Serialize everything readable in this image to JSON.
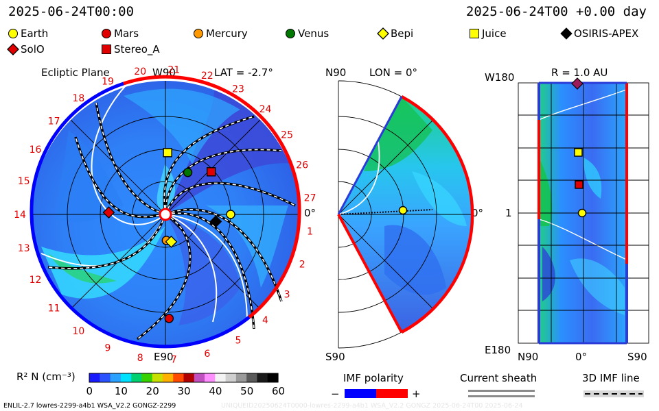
{
  "header": {
    "left_time": "2025-06-24T00:00",
    "right_time": "2025-06-24T00 +0.00 day"
  },
  "bodies": [
    {
      "name": "Earth",
      "symbol": "circle",
      "color": "#ffff00"
    },
    {
      "name": "Mars",
      "symbol": "circle",
      "color": "#e00000"
    },
    {
      "name": "Mercury",
      "symbol": "circle",
      "color": "#ff9900"
    },
    {
      "name": "Venus",
      "symbol": "circle",
      "color": "#007700"
    },
    {
      "name": "Bepi",
      "symbol": "diamond",
      "color": "#ffff00"
    },
    {
      "name": "Juice",
      "symbol": "square",
      "color": "#ffff00"
    },
    {
      "name": "OSIRIS-APEX",
      "symbol": "diamond",
      "color": "#000000"
    },
    {
      "name": "SolO",
      "symbol": "diamond",
      "color": "#e00000"
    },
    {
      "name": "Stereo_A",
      "symbol": "square",
      "color": "#e00000"
    }
  ],
  "panels": {
    "ecliptic": {
      "title": "Ecliptic Plane",
      "lat_label": "LAT = -2.7°",
      "top_label": "W90",
      "bottom_label": "E90",
      "right_label": "0°",
      "carrington_labels": [
        "1",
        "2",
        "3",
        "4",
        "5",
        "6",
        "7",
        "8",
        "9",
        "10",
        "11",
        "12",
        "13",
        "14",
        "15",
        "16",
        "17",
        "18",
        "19",
        "20",
        "21",
        "22",
        "23",
        "24",
        "25",
        "26",
        "27"
      ]
    },
    "meridional": {
      "top_label": "N90",
      "bottom_label": "S90",
      "lon_label": "LON = 0°",
      "right_label": "0°"
    },
    "sphere": {
      "title": "R = 1.0 AU",
      "top_left_label": "W180",
      "bottom_left_label": "E180",
      "mid_left_label": "1",
      "bottom_labels": [
        "N90",
        "0°",
        "S90"
      ]
    }
  },
  "colorbar": {
    "label": "R² N (cm⁻³)",
    "ticks": [
      "0",
      "10",
      "20",
      "30",
      "40",
      "50",
      "60"
    ],
    "colors": [
      "#1a1aff",
      "#2a52ff",
      "#2aa0ff",
      "#00e0ff",
      "#00d070",
      "#39d000",
      "#c8e000",
      "#ffb000",
      "#ff4a00",
      "#b00000",
      "#c050c0",
      "#ff8fff",
      "#f3f3f3",
      "#cfcfcf",
      "#9a9a9a",
      "#5a5a5a",
      "#1a1a1a",
      "#000000"
    ]
  },
  "imf_polarity": {
    "title": "IMF polarity",
    "minus": "−",
    "plus": "+",
    "neg_color": "#0000ff",
    "pos_color": "#ff0000"
  },
  "current_sheath": {
    "title": "Current sheath"
  },
  "imf_line": {
    "title": "3D IMF line"
  },
  "footer": {
    "left": "ENLIL-2.7 lowres-2299-a4b1 WSA_V2.2 GONGZ-2299",
    "right": "UNIQUEID20250624T0000-lowres-2299-a4b1 WSA_V2.2 GONGZ 2025-06-24T00   2025-06-24"
  },
  "chart_data": [
    {
      "type": "heatmap",
      "title": "Ecliptic Plane",
      "subtitle": "LAT = -2.7°",
      "quantity": "R² N (cm⁻³)",
      "range": [
        0,
        60
      ],
      "positions": [
        {
          "name": "Earth",
          "r_au": 1.0,
          "lon_deg": 0
        },
        {
          "name": "Mars",
          "r_au": 1.6,
          "lon_deg": -88
        },
        {
          "name": "Mercury",
          "r_au": 0.4,
          "lon_deg": -88
        },
        {
          "name": "Venus",
          "r_au": 0.73,
          "lon_deg": 62
        },
        {
          "name": "Bepi",
          "r_au": 0.43,
          "lon_deg": -78
        },
        {
          "name": "Juice",
          "r_au": 0.95,
          "lon_deg": 88
        },
        {
          "name": "OSIRIS-APEX",
          "r_au": 0.78,
          "lon_deg": -8
        },
        {
          "name": "SolO",
          "r_au": 0.87,
          "lon_deg": 178
        },
        {
          "name": "Stereo_A",
          "r_au": 0.96,
          "lon_deg": 43
        }
      ]
    },
    {
      "type": "heatmap",
      "title": "LON = 0°",
      "quantity": "R² N (cm⁻³)",
      "range": [
        0,
        60
      ],
      "lat_range": [
        -60,
        60
      ]
    },
    {
      "type": "heatmap",
      "title": "R = 1.0 AU",
      "quantity": "R² N (cm⁻³)",
      "range": [
        0,
        60
      ],
      "lon_range": [
        "W180",
        "E180"
      ],
      "lat_range": [
        "N90",
        "S90"
      ]
    }
  ]
}
